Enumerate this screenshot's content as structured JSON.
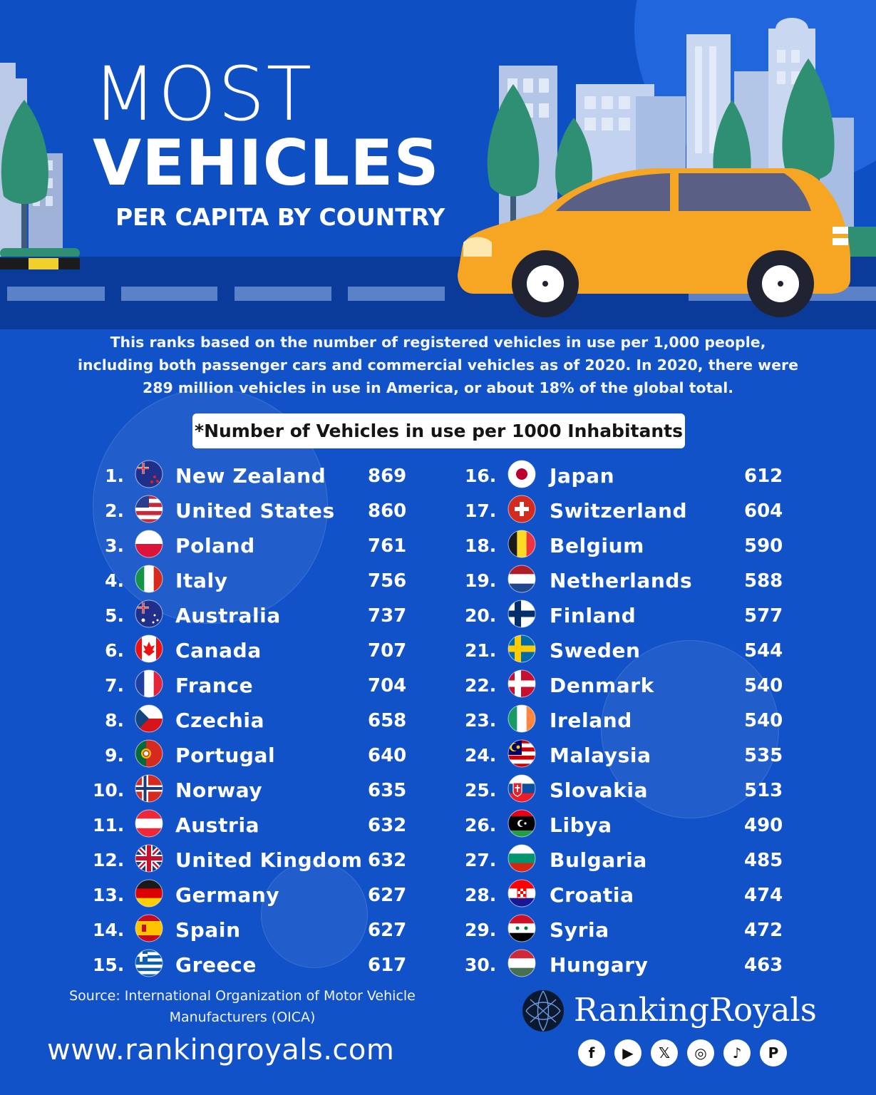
{
  "header": {
    "title_line1": "MOST",
    "title_line2": "VEHICLES",
    "title_line3": "PER CAPITA BY COUNTRY"
  },
  "intro": "This ranks based on the number of registered vehicles in use per 1,000 people, including both passenger cars and commercial vehicles as of 2020. In 2020, there were 289 million vehicles in use in America, or about 18% of the global total.",
  "unit_label": "*Number of Vehicles in use per 1000 Inhabitants",
  "ranking": [
    {
      "rank": "1.",
      "country": "New Zealand",
      "value": "869",
      "flag": "new-zealand-flag"
    },
    {
      "rank": "2.",
      "country": "United States",
      "value": "860",
      "flag": "united-states-flag"
    },
    {
      "rank": "3.",
      "country": "Poland",
      "value": "761",
      "flag": "poland-flag"
    },
    {
      "rank": "4.",
      "country": "Italy",
      "value": "756",
      "flag": "italy-flag"
    },
    {
      "rank": "5.",
      "country": "Australia",
      "value": "737",
      "flag": "australia-flag"
    },
    {
      "rank": "6.",
      "country": "Canada",
      "value": "707",
      "flag": "canada-flag"
    },
    {
      "rank": "7.",
      "country": "France",
      "value": "704",
      "flag": "france-flag"
    },
    {
      "rank": "8.",
      "country": "Czechia",
      "value": "658",
      "flag": "czechia-flag"
    },
    {
      "rank": "9.",
      "country": "Portugal",
      "value": "640",
      "flag": "portugal-flag"
    },
    {
      "rank": "10.",
      "country": "Norway",
      "value": "635",
      "flag": "norway-flag"
    },
    {
      "rank": "11.",
      "country": "Austria",
      "value": "632",
      "flag": "austria-flag"
    },
    {
      "rank": "12.",
      "country": "United Kingdom",
      "value": "632",
      "flag": "united-kingdom-flag"
    },
    {
      "rank": "13.",
      "country": "Germany",
      "value": "627",
      "flag": "germany-flag"
    },
    {
      "rank": "14.",
      "country": "Spain",
      "value": "627",
      "flag": "spain-flag"
    },
    {
      "rank": "15.",
      "country": "Greece",
      "value": "617",
      "flag": "greece-flag"
    },
    {
      "rank": "16.",
      "country": "Japan",
      "value": "612",
      "flag": "japan-flag"
    },
    {
      "rank": "17.",
      "country": "Switzerland",
      "value": "604",
      "flag": "switzerland-flag"
    },
    {
      "rank": "18.",
      "country": "Belgium",
      "value": "590",
      "flag": "belgium-flag"
    },
    {
      "rank": "19.",
      "country": "Netherlands",
      "value": "588",
      "flag": "netherlands-flag"
    },
    {
      "rank": "20.",
      "country": "Finland",
      "value": "577",
      "flag": "finland-flag"
    },
    {
      "rank": "21.",
      "country": "Sweden",
      "value": "544",
      "flag": "sweden-flag"
    },
    {
      "rank": "22.",
      "country": "Denmark",
      "value": "540",
      "flag": "denmark-flag"
    },
    {
      "rank": "23.",
      "country": "Ireland",
      "value": "540",
      "flag": "ireland-flag"
    },
    {
      "rank": "24.",
      "country": "Malaysia",
      "value": "535",
      "flag": "malaysia-flag"
    },
    {
      "rank": "25.",
      "country": "Slovakia",
      "value": "513",
      "flag": "slovakia-flag"
    },
    {
      "rank": "26.",
      "country": "Libya",
      "value": "490",
      "flag": "libya-flag"
    },
    {
      "rank": "27.",
      "country": "Bulgaria",
      "value": "485",
      "flag": "bulgaria-flag"
    },
    {
      "rank": "28.",
      "country": "Croatia",
      "value": "474",
      "flag": "croatia-flag"
    },
    {
      "rank": "29.",
      "country": "Syria",
      "value": "472",
      "flag": "syria-flag"
    },
    {
      "rank": "30.",
      "country": "Hungary",
      "value": "463",
      "flag": "hungary-flag"
    }
  ],
  "footer": {
    "source": "Source: International Organization of Motor Vehicle Manufacturers (OICA)",
    "website": "www.rankingroyals.com",
    "brand": "RankingRoyals",
    "social_icons": [
      "facebook-icon",
      "youtube-icon",
      "x-icon",
      "instagram-icon",
      "tiktok-icon",
      "pinterest-icon"
    ]
  },
  "colors": {
    "background": "#1152c8",
    "car": "#f6a623",
    "road": "#0a3a9a",
    "tree": "#2f8f73"
  }
}
